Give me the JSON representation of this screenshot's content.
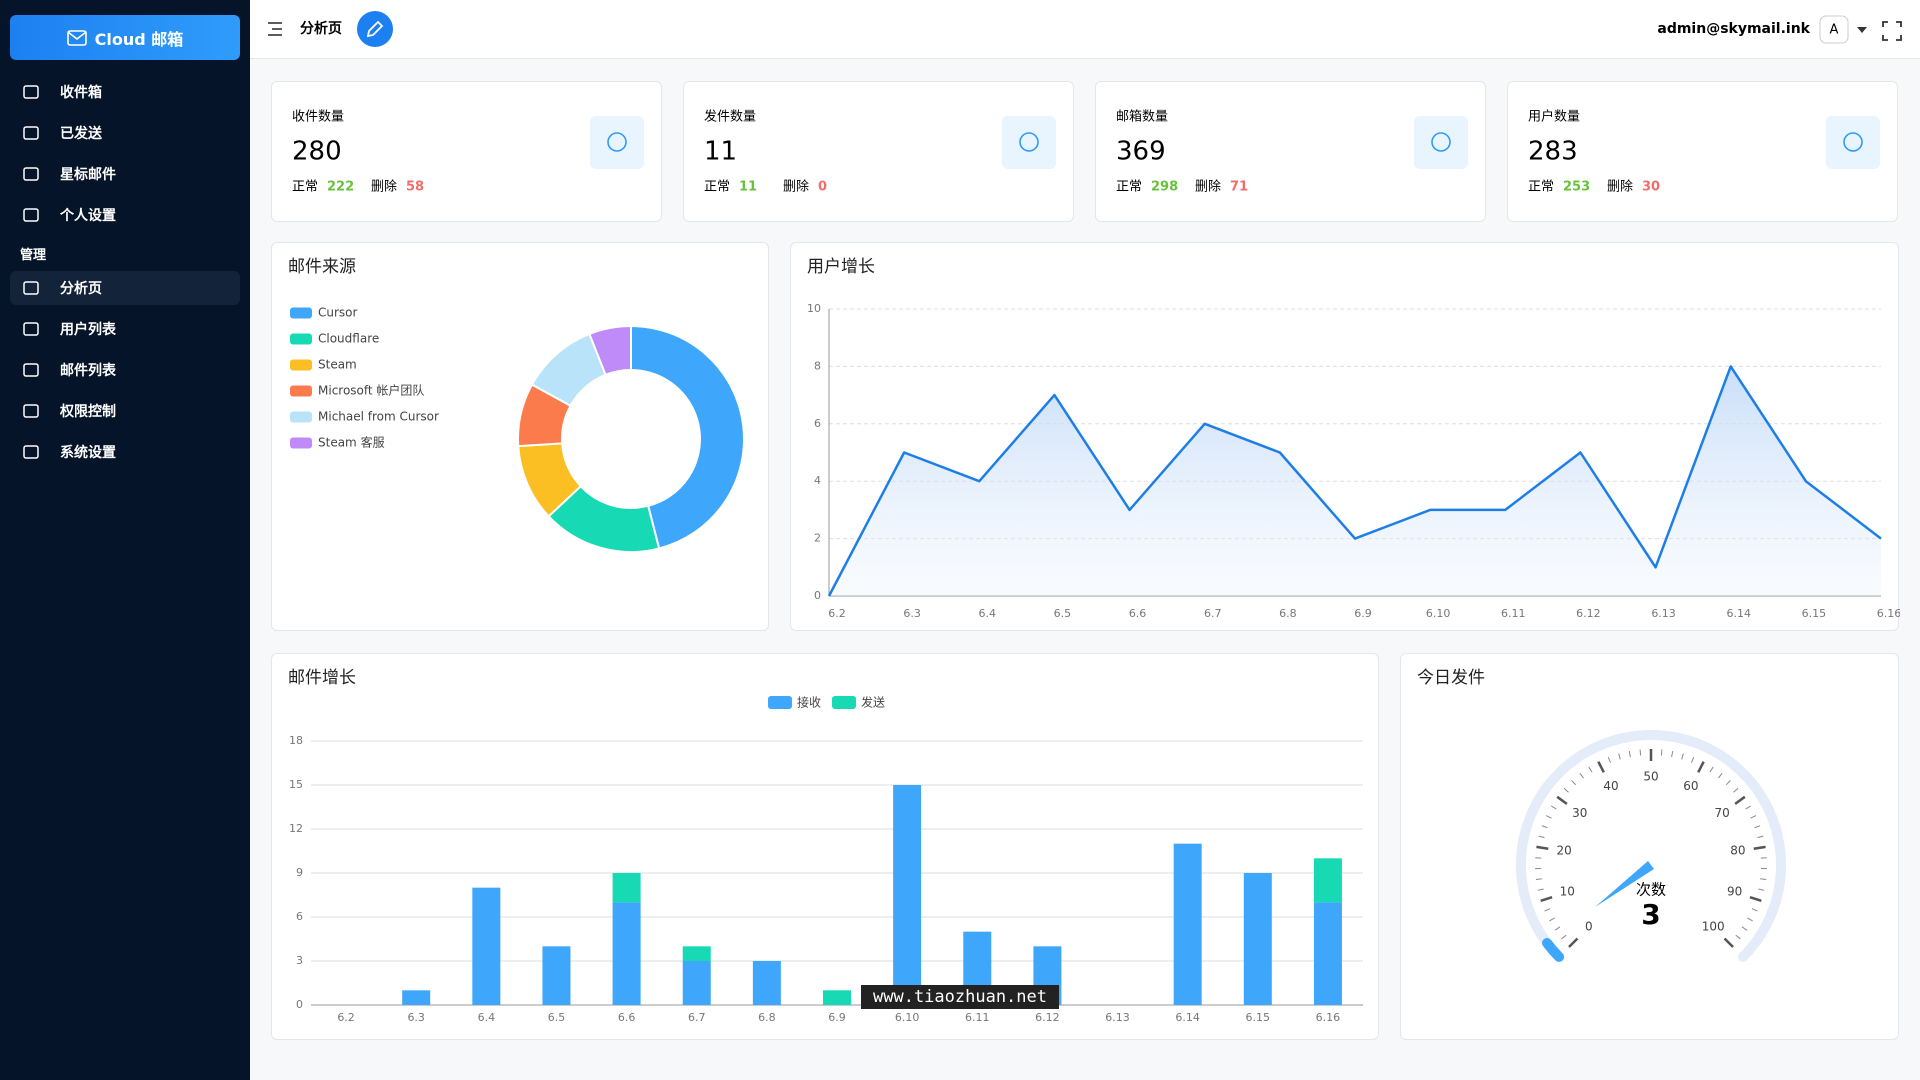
{
  "sidebar": {
    "brand": "Cloud 邮箱",
    "menu": [
      "收件箱",
      "已发送",
      "星标邮件",
      "个人设置"
    ],
    "section": "管理",
    "admin_menu": [
      "分析页",
      "用户列表",
      "邮件列表",
      "权限控制",
      "系统设置"
    ]
  },
  "header": {
    "title": "分析页",
    "user": "admin@skymail.ink",
    "avatar": "A"
  },
  "stats": [
    {
      "label": "收件数量",
      "total": 280,
      "normal_label": "正常",
      "normal": 222,
      "deleted_label": "删除",
      "deleted": 58
    },
    {
      "label": "发件数量",
      "total": 11,
      "normal_label": "正常",
      "normal": 11,
      "deleted_label": "删除",
      "deleted": 0
    },
    {
      "label": "邮箱数量",
      "total": 369,
      "normal_label": "正常",
      "normal": 298,
      "deleted_label": "删除",
      "deleted": 71
    },
    {
      "label": "用户数量",
      "total": 283,
      "normal_label": "正常",
      "normal": 253,
      "deleted_label": "删除",
      "deleted": 30
    }
  ],
  "chart_data": [
    {
      "type": "pie",
      "title": "邮件来源",
      "categories": [
        "Cursor",
        "Cloudflare",
        "Steam",
        "Microsoft 帐户团队",
        "Michael from Cursor",
        "Steam 客服"
      ],
      "values": [
        46,
        17,
        11,
        9,
        11,
        6
      ],
      "colors": [
        "#3ea6fb",
        "#17d9b4",
        "#fbbf24",
        "#fb7b4c",
        "#b9e3f9",
        "#be8bf9"
      ],
      "donut": true
    },
    {
      "type": "line",
      "title": "用户增长",
      "categories": [
        "6.2",
        "6.3",
        "6.4",
        "6.5",
        "6.6",
        "6.7",
        "6.8",
        "6.9",
        "6.10",
        "6.11",
        "6.12",
        "6.13",
        "6.14",
        "6.15",
        "6.16"
      ],
      "values": [
        0,
        5,
        4,
        7,
        3,
        6,
        5,
        2,
        3,
        3,
        5,
        1,
        8,
        4,
        2
      ],
      "color": "#1e7ee8",
      "area": true,
      "ylim": [
        0,
        10
      ],
      "yticks": [
        0,
        2,
        4,
        6,
        8,
        10
      ],
      "grid": true
    },
    {
      "type": "stacked-bar",
      "title": "邮件增长",
      "categories": [
        "6.2",
        "6.3",
        "6.4",
        "6.5",
        "6.6",
        "6.7",
        "6.8",
        "6.9",
        "6.10",
        "6.11",
        "6.12",
        "6.13",
        "6.14",
        "6.15",
        "6.16"
      ],
      "series": [
        {
          "name": "接收",
          "color": "#3ea6fb",
          "values": [
            0,
            1,
            8,
            4,
            7,
            3,
            3,
            0,
            15,
            5,
            4,
            0,
            11,
            9,
            7
          ]
        },
        {
          "name": "发送",
          "color": "#17d9b4",
          "values": [
            0,
            0,
            0,
            0,
            2,
            1,
            0,
            1,
            0,
            0,
            0,
            0,
            0,
            0,
            3
          ]
        }
      ],
      "ylim": [
        0,
        18
      ],
      "yticks": [
        0,
        3,
        6,
        9,
        12,
        15,
        18
      ],
      "grid": true,
      "legend": "top"
    },
    {
      "type": "gauge",
      "title": "今日发件",
      "name": "次数",
      "value": 3,
      "lim": [
        0,
        100
      ],
      "ticks": [
        0,
        10,
        20,
        30,
        40,
        50,
        60,
        70,
        80,
        90,
        100
      ],
      "color": "#3ea6fb"
    }
  ],
  "watermark": "www.tiaozhuan.net"
}
